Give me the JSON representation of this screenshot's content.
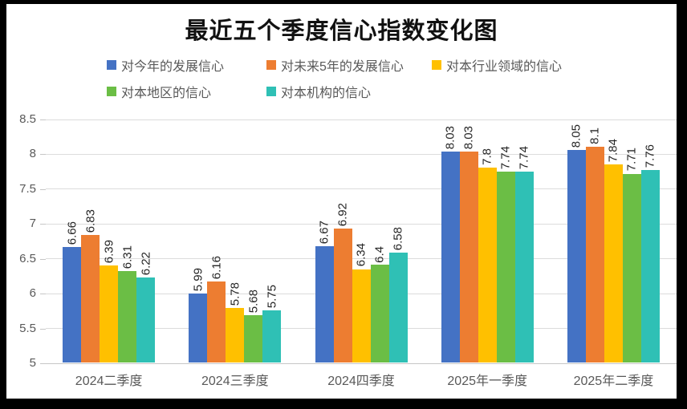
{
  "title": "最近五个季度信心指数变化图",
  "colors": {
    "series_blue": "#4472C4",
    "series_orange": "#ED7D31",
    "series_gold": "#FFC000",
    "series_green": "#6BBE45",
    "series_teal": "#2FC0B5",
    "gridline": "#dcdcdc",
    "axis_text": "#595959",
    "label_text": "#262626",
    "frame": "#000000",
    "background": "#ffffff"
  },
  "legend": {
    "position": "top",
    "items": [
      {
        "label": "对今年的发展信心",
        "color": "#4472C4"
      },
      {
        "label": "对未来5年的发展信心",
        "color": "#ED7D31"
      },
      {
        "label": "对本行业领域的信心",
        "color": "#FFC000"
      },
      {
        "label": "对本地区的信心",
        "color": "#6BBE45"
      },
      {
        "label": "对本机构的信心",
        "color": "#2FC0B5"
      }
    ]
  },
  "chart_data": {
    "type": "bar",
    "title": "最近五个季度信心指数变化图",
    "categories": [
      "2024二季度",
      "2024三季度",
      "2024四季度",
      "2025年一季度",
      "2025年二季度"
    ],
    "series": [
      {
        "name": "对今年的发展信心",
        "color": "#4472C4",
        "values": [
          6.66,
          5.99,
          6.67,
          8.03,
          8.05
        ]
      },
      {
        "name": "对未来5年的发展信心",
        "color": "#ED7D31",
        "values": [
          6.83,
          6.16,
          6.92,
          8.03,
          8.1
        ]
      },
      {
        "name": "对本行业领域的信心",
        "color": "#FFC000",
        "values": [
          6.39,
          5.78,
          6.34,
          7.8,
          7.84
        ]
      },
      {
        "name": "对本地区的信心",
        "color": "#6BBE45",
        "values": [
          6.31,
          5.68,
          6.4,
          7.74,
          7.71
        ]
      },
      {
        "name": "对本机构的信心",
        "color": "#2FC0B5",
        "values": [
          6.22,
          5.75,
          6.58,
          7.74,
          7.76
        ]
      }
    ],
    "xlabel": "",
    "ylabel": "",
    "ylim": [
      5,
      8.5
    ],
    "yticks": [
      5,
      5.5,
      6,
      6.5,
      7,
      7.5,
      8,
      8.5
    ],
    "grid": true,
    "data_labels": true,
    "data_label_rotation": -90,
    "legend_position": "top"
  }
}
